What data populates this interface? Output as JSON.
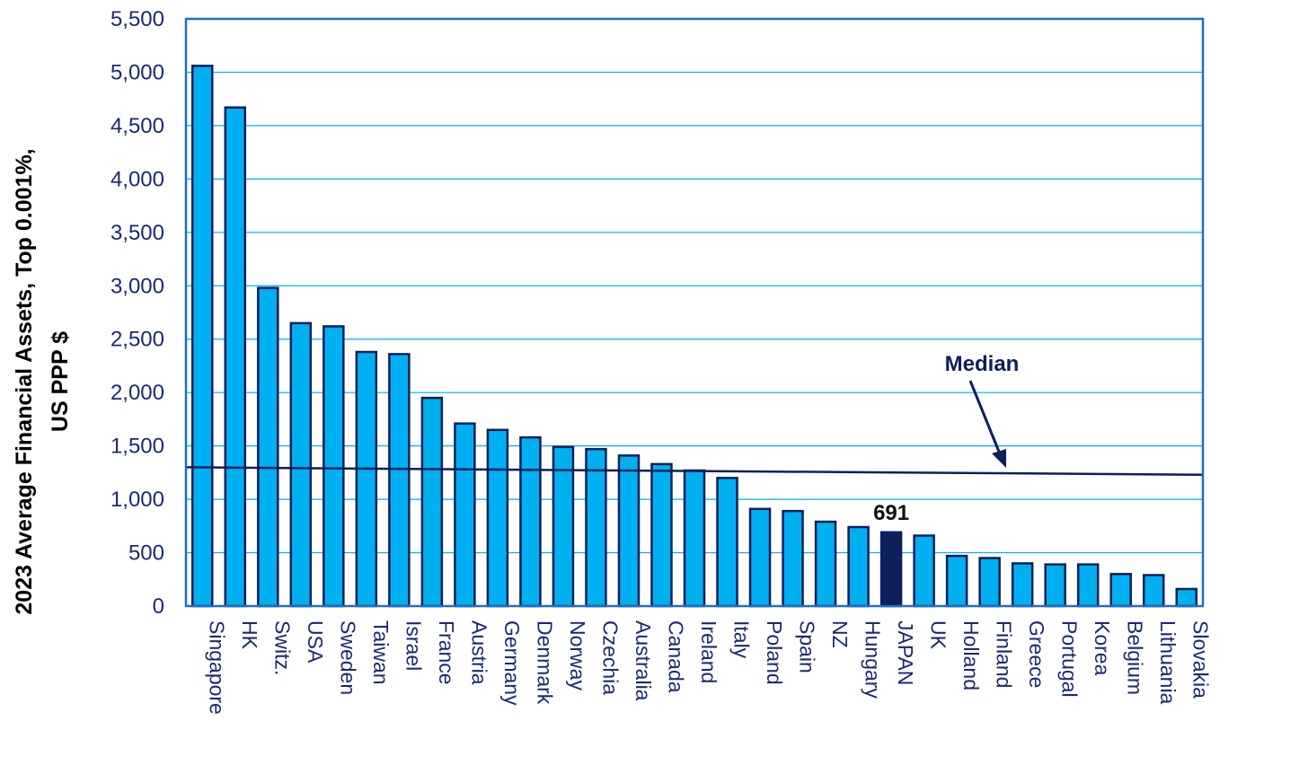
{
  "chart_data": {
    "type": "bar",
    "ylabel_lines": [
      "2023 Average Financial Assets, Top 0.001%,",
      "US PPP $"
    ],
    "ylim": [
      0,
      5500
    ],
    "yticks": [
      0,
      500,
      1000,
      1500,
      2000,
      2500,
      3000,
      3500,
      4000,
      4500,
      5000,
      5500
    ],
    "ytick_labels": [
      "0",
      "500",
      "1,000",
      "1,500",
      "2,000",
      "2,500",
      "3,000",
      "3,500",
      "4,000",
      "4,500",
      "5,000",
      "5,500"
    ],
    "grid": true,
    "categories": [
      "Singapore",
      "HK",
      "Switz.",
      "USA",
      "Sweden",
      "Taiwan",
      "Israel",
      "France",
      "Austria",
      "Germany",
      "Denmark",
      "Norway",
      "Czechia",
      "Australia",
      "Canada",
      "Ireland",
      "Italy",
      "Poland",
      "Spain",
      "NZ",
      "Hungary",
      "JAPAN",
      "UK",
      "Holland",
      "Finland",
      "Greece",
      "Portugal",
      "Korea",
      "Belgium",
      "Lithuania",
      "Slovakia"
    ],
    "values": [
      5060,
      4670,
      2980,
      2650,
      2620,
      2380,
      2360,
      1950,
      1710,
      1650,
      1580,
      1490,
      1470,
      1410,
      1330,
      1270,
      1200,
      910,
      890,
      790,
      740,
      691,
      660,
      470,
      450,
      400,
      390,
      390,
      300,
      290,
      160
    ],
    "highlight": {
      "category": "JAPAN",
      "label": "691"
    },
    "median": {
      "label": "Median",
      "start_value": 1300,
      "end_value": 1230
    },
    "colors": {
      "bar": "#00b0f0",
      "bar_edge": "#0d1f5c",
      "highlight": "#0d1f5c",
      "grid": "#00b0f0",
      "frame": "#1f6fbf",
      "text": "#1a2a6c",
      "median": "#0d1f5c"
    }
  }
}
